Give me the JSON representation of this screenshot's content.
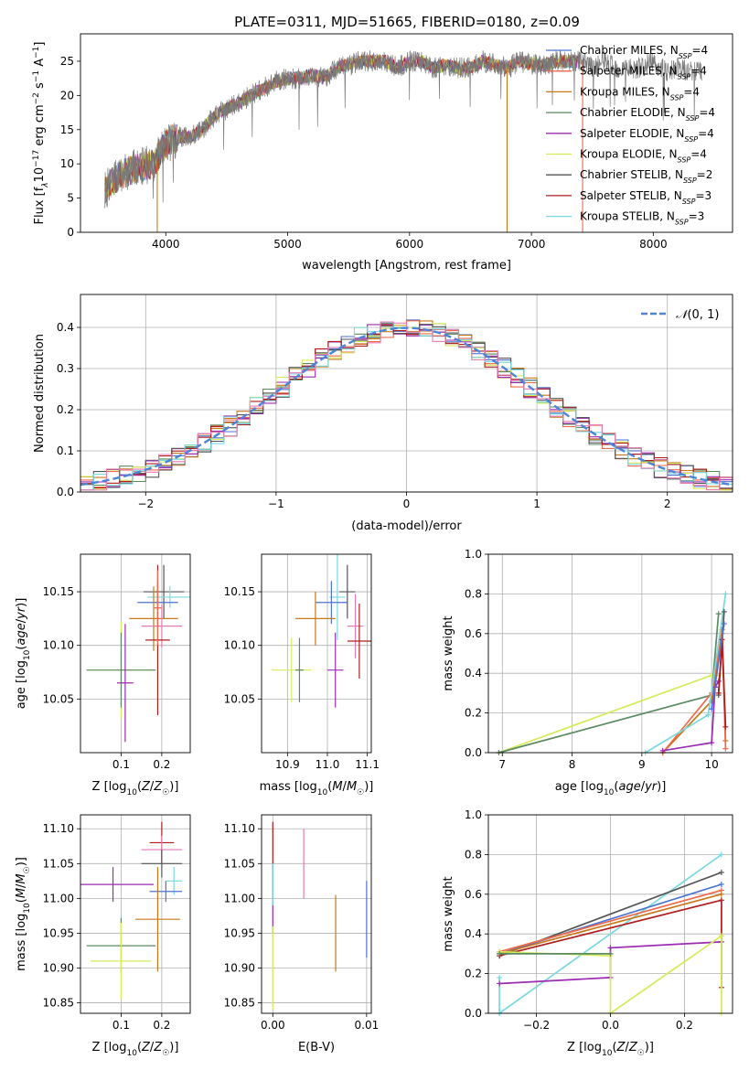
{
  "figure_title": "PLATE=0311, MJD=51665, FIBERID=0180, z=0.09",
  "colors": {
    "chabrier_miles": "#4c72d0",
    "salpeter_miles": "#ef6a4c",
    "kroupa_miles": "#c8781a",
    "chabrier_elodie": "#5a8a60",
    "salpeter_elodie": "#9b2bb0",
    "kroupa_elodie": "#d4ec5a",
    "chabrier_stelib": "#555555",
    "salpeter_stelib": "#b01c1c",
    "kroupa_stelib": "#79d9df",
    "pink": "#e87ab4",
    "normal_curve": "#4c84d8"
  },
  "chart_data": [
    {
      "id": "spectrum",
      "type": "line",
      "xlabel": "wavelength [Angstrom, rest frame]",
      "ylabel": "Flux [f$_\\lambda$10$^{-17}$ erg cm$^{-2}$ s$^{-1}$ A$^{-1}$]",
      "xlim": [
        3300,
        8650
      ],
      "ylim": [
        0,
        29
      ],
      "xticks": [
        4000,
        5000,
        6000,
        7000,
        8000
      ],
      "yticks": [
        0,
        5,
        10,
        15,
        20,
        25
      ],
      "grid": false,
      "legend_position": "top-right",
      "legend": [
        {
          "label": "Chabrier MILES, N_SSP=4",
          "color_key": "chabrier_miles"
        },
        {
          "label": "Salpeter MILES, N_SSP=4",
          "color_key": "salpeter_miles"
        },
        {
          "label": "Kroupa MILES, N_SSP=4",
          "color_key": "kroupa_miles"
        },
        {
          "label": "Chabrier ELODIE, N_SSP=4",
          "color_key": "chabrier_elodie"
        },
        {
          "label": "Salpeter ELODIE, N_SSP=4",
          "color_key": "salpeter_elodie"
        },
        {
          "label": "Kroupa ELODIE, N_SSP=4",
          "color_key": "kroupa_elodie"
        },
        {
          "label": "Chabrier STELIB, N_SSP=2",
          "color_key": "chabrier_stelib"
        },
        {
          "label": "Salpeter STELIB, N_SSP=3",
          "color_key": "salpeter_stelib"
        },
        {
          "label": "Kroupa STELIB, N_SSP=3",
          "color_key": "kroupa_stelib"
        }
      ],
      "continuum": [
        [
          3500,
          6
        ],
        [
          3600,
          8
        ],
        [
          3700,
          9
        ],
        [
          3800,
          9.5
        ],
        [
          3900,
          10
        ],
        [
          4000,
          13
        ],
        [
          4100,
          14
        ],
        [
          4200,
          14
        ],
        [
          4300,
          15
        ],
        [
          4400,
          17
        ],
        [
          4500,
          18
        ],
        [
          4600,
          19
        ],
        [
          4700,
          20
        ],
        [
          4800,
          21
        ],
        [
          4900,
          22
        ],
        [
          5000,
          22.5
        ],
        [
          5100,
          22.5
        ],
        [
          5200,
          23
        ],
        [
          5300,
          22.5
        ],
        [
          5400,
          24
        ],
        [
          5500,
          24.5
        ],
        [
          5600,
          25
        ],
        [
          5700,
          25
        ],
        [
          5800,
          25
        ],
        [
          5900,
          24
        ],
        [
          6000,
          25
        ],
        [
          6100,
          25
        ],
        [
          6200,
          24
        ],
        [
          6300,
          24.5
        ],
        [
          6400,
          24
        ],
        [
          6500,
          24
        ],
        [
          6600,
          25
        ],
        [
          6700,
          24.5
        ],
        [
          6800,
          24
        ],
        [
          6900,
          25
        ],
        [
          7000,
          24.5
        ],
        [
          7100,
          24.5
        ],
        [
          7200,
          25
        ],
        [
          7300,
          25
        ],
        [
          7400,
          25
        ],
        [
          7500,
          24
        ],
        [
          7600,
          25
        ],
        [
          7700,
          24
        ],
        [
          7800,
          24
        ],
        [
          7900,
          24
        ],
        [
          8000,
          25
        ],
        [
          8100,
          23.5
        ],
        [
          8200,
          24
        ],
        [
          8300,
          23.5
        ],
        [
          8400,
          23.5
        ]
      ],
      "model_end_wavelength": 7400,
      "dropouts": [
        {
          "x": 3930,
          "color_key": "kroupa_miles"
        },
        {
          "x": 6800,
          "color_key": "kroupa_miles"
        },
        {
          "x": 7420,
          "color_key": "salpeter_miles"
        }
      ]
    },
    {
      "id": "residual_hist",
      "type": "histogram",
      "xlabel": "(data-model)/error",
      "ylabel": "Normed distribution",
      "xlim": [
        -2.5,
        2.5
      ],
      "ylim": [
        0,
        0.48
      ],
      "xticks": [
        -2,
        -1,
        0,
        1,
        2
      ],
      "yticks": [
        0.0,
        0.1,
        0.2,
        0.3,
        0.4
      ],
      "grid": true,
      "legend_position": "top-right",
      "legend": [
        {
          "label": "N(0,1)",
          "color_key": "normal_curve",
          "style": "dashed"
        }
      ],
      "bin_width": 0.1
    },
    {
      "id": "age_vs_Z",
      "type": "scatter",
      "xlabel": "Z [log10(Z/Z☉)]",
      "ylabel": "age  [log10(age/yr)]",
      "xlim": [
        0.0,
        0.27
      ],
      "ylim": [
        10.0,
        10.185
      ],
      "xticks": [
        0.1,
        0.2
      ],
      "yticks": [
        10.05,
        10.1,
        10.15
      ],
      "grid": true,
      "points": [
        {
          "x": 0.205,
          "y": 10.15,
          "xerr": 0.05,
          "yerr": 0.025,
          "color_key": "chabrier_stelib"
        },
        {
          "x": 0.22,
          "y": 10.145,
          "xerr": 0.055,
          "yerr": 0.01,
          "color_key": "kroupa_stelib"
        },
        {
          "x": 0.19,
          "y": 10.14,
          "xerr": 0.05,
          "yerr": 0.02,
          "color_key": "chabrier_miles"
        },
        {
          "x": 0.18,
          "y": 10.125,
          "xerr": 0.06,
          "yerr": 0.03,
          "color_key": "kroupa_miles"
        },
        {
          "x": 0.2,
          "y": 10.118,
          "xerr": 0.05,
          "yerr": 0.02,
          "color_key": "pink"
        },
        {
          "x": 0.19,
          "y": 10.105,
          "xerr": 0.03,
          "yerr": 0.07,
          "color_key": "salpeter_stelib"
        },
        {
          "x": 0.1,
          "y": 10.077,
          "xerr": 0.085,
          "yerr": 0.045,
          "color_key": "kroupa_elodie"
        },
        {
          "x": 0.1,
          "y": 10.077,
          "xerr": 0.085,
          "yerr": 0.035,
          "color_key": "chabrier_elodie"
        },
        {
          "x": 0.11,
          "y": 10.065,
          "xerr": 0.02,
          "yerr": 0.055,
          "color_key": "salpeter_elodie"
        },
        {
          "x": 0.19,
          "y": 10.135,
          "xerr": 0.01,
          "yerr": 0.035,
          "color_key": "salpeter_miles"
        }
      ]
    },
    {
      "id": "age_vs_mass",
      "type": "scatter",
      "xlabel": "mass [log10(M/M☉)]",
      "ylabel": "",
      "xlim": [
        10.835,
        11.11
      ],
      "ylim": [
        10.0,
        10.185
      ],
      "xticks": [
        10.9,
        11.0,
        11.1
      ],
      "yticks": [
        10.05,
        10.1,
        10.15
      ],
      "grid": true,
      "points": [
        {
          "x": 11.05,
          "y": 10.15,
          "xerr": 0.02,
          "yerr": 0.025,
          "color_key": "chabrier_stelib"
        },
        {
          "x": 11.025,
          "y": 10.145,
          "xerr": 0.02,
          "yerr": 0.04,
          "color_key": "kroupa_stelib"
        },
        {
          "x": 11.01,
          "y": 10.14,
          "xerr": 0.04,
          "yerr": 0.02,
          "color_key": "chabrier_miles"
        },
        {
          "x": 10.97,
          "y": 10.125,
          "xerr": 0.05,
          "yerr": 0.025,
          "color_key": "kroupa_miles"
        },
        {
          "x": 11.07,
          "y": 10.118,
          "xerr": 0.02,
          "yerr": 0.03,
          "color_key": "pink"
        },
        {
          "x": 11.08,
          "y": 10.104,
          "xerr": 0.03,
          "yerr": 0.035,
          "color_key": "salpeter_stelib"
        },
        {
          "x": 10.91,
          "y": 10.077,
          "xerr": 0.05,
          "yerr": 0.03,
          "color_key": "kroupa_elodie"
        },
        {
          "x": 10.93,
          "y": 10.077,
          "xerr": 0.01,
          "yerr": 0.03,
          "color_key": "chabrier_elodie"
        },
        {
          "x": 11.02,
          "y": 10.077,
          "xerr": 0.02,
          "yerr": 0.035,
          "color_key": "salpeter_elodie"
        }
      ]
    },
    {
      "id": "weight_vs_age",
      "type": "line",
      "xlabel": "age  [log10(age/yr)]",
      "ylabel": "mass weight",
      "xlim": [
        6.8,
        10.3
      ],
      "ylim": [
        0,
        1.0
      ],
      "xticks": [
        7,
        8,
        9,
        10
      ],
      "yticks": [
        0.0,
        0.2,
        0.4,
        0.6,
        0.8,
        1.0
      ],
      "grid": true,
      "series": [
        {
          "color_key": "kroupa_elodie",
          "points": [
            [
              6.95,
              0.0
            ],
            [
              10.0,
              0.39
            ],
            [
              10.1,
              0.39
            ]
          ]
        },
        {
          "color_key": "chabrier_elodie",
          "points": [
            [
              6.95,
              0.0
            ],
            [
              10.0,
              0.29
            ],
            [
              10.1,
              0.7
            ]
          ]
        },
        {
          "color_key": "kroupa_miles",
          "points": [
            [
              9.3,
              0.0
            ],
            [
              10.0,
              0.26
            ],
            [
              10.15,
              0.62
            ],
            [
              10.2,
              0.06
            ]
          ]
        },
        {
          "color_key": "salpeter_miles",
          "points": [
            [
              9.3,
              0.0
            ],
            [
              10.0,
              0.3
            ],
            [
              10.15,
              0.6
            ],
            [
              10.2,
              0.02
            ]
          ]
        },
        {
          "color_key": "salpeter_elodie",
          "points": [
            [
              9.3,
              0.01
            ],
            [
              10.0,
              0.05
            ],
            [
              10.05,
              0.33
            ],
            [
              10.1,
              0.36
            ]
          ]
        },
        {
          "color_key": "kroupa_stelib",
          "points": [
            [
              9.05,
              0.0
            ],
            [
              9.95,
              0.19
            ],
            [
              10.2,
              0.8
            ]
          ]
        },
        {
          "color_key": "chabrier_stelib",
          "points": [
            [
              10.1,
              0.29
            ],
            [
              10.18,
              0.71
            ]
          ]
        },
        {
          "color_key": "salpeter_stelib",
          "points": [
            [
              10.1,
              0.3
            ],
            [
              10.15,
              0.57
            ],
            [
              10.2,
              0.13
            ]
          ]
        },
        {
          "color_key": "chabrier_miles",
          "points": [
            [
              10.0,
              0.22
            ],
            [
              10.18,
              0.65
            ]
          ]
        }
      ]
    },
    {
      "id": "mass_vs_Z",
      "type": "scatter",
      "xlabel": "Z [log10(Z/Z☉)]",
      "ylabel": "mass [log10(M/M☉)]",
      "xlim": [
        0.0,
        0.27
      ],
      "ylim": [
        10.835,
        11.12
      ],
      "xticks": [
        0.1,
        0.2
      ],
      "yticks": [
        10.85,
        10.9,
        10.95,
        11.0,
        11.05,
        11.1
      ],
      "grid": true,
      "points": [
        {
          "x": 0.2,
          "y": 11.08,
          "xerr": 0.03,
          "yerr": 0.03,
          "color_key": "salpeter_stelib"
        },
        {
          "x": 0.2,
          "y": 11.07,
          "xerr": 0.05,
          "yerr": 0.02,
          "color_key": "pink"
        },
        {
          "x": 0.2,
          "y": 11.05,
          "xerr": 0.05,
          "yerr": 0.02,
          "color_key": "chabrier_stelib"
        },
        {
          "x": 0.23,
          "y": 11.025,
          "xerr": 0.02,
          "yerr": 0.02,
          "color_key": "kroupa_stelib"
        },
        {
          "x": 0.08,
          "y": 11.02,
          "xerr": 0.1,
          "yerr": 0.025,
          "color_key": "salpeter_elodie"
        },
        {
          "x": 0.21,
          "y": 11.01,
          "xerr": 0.04,
          "yerr": 0.015,
          "color_key": "chabrier_miles"
        },
        {
          "x": 0.19,
          "y": 10.97,
          "xerr": 0.055,
          "yerr": 0.075,
          "color_key": "kroupa_miles"
        },
        {
          "x": 0.1,
          "y": 10.932,
          "xerr": 0.085,
          "yerr": 0.04,
          "color_key": "chabrier_elodie"
        },
        {
          "x": 0.1,
          "y": 10.91,
          "xerr": 0.075,
          "yerr": 0.055,
          "color_key": "kroupa_elodie"
        }
      ]
    },
    {
      "id": "mass_vs_ebv",
      "type": "scatter",
      "xlabel": "E(B-V)",
      "ylabel": "",
      "xlim": [
        -0.0012,
        0.0105
      ],
      "ylim": [
        10.835,
        11.12
      ],
      "xticks": [
        0.0,
        0.01
      ],
      "yticks": [
        10.85,
        10.9,
        10.95,
        11.0,
        11.05,
        11.1
      ],
      "grid": true,
      "points": [
        {
          "x": 0.0,
          "y": 11.08,
          "yerr": 0.03,
          "color_key": "salpeter_stelib"
        },
        {
          "x": 0.0033,
          "y": 11.05,
          "yerr": 0.05,
          "color_key": "pink"
        },
        {
          "x": 0.0,
          "y": 11.0,
          "yerr": 0.05,
          "color_key": "salpeter_elodie"
        },
        {
          "x": 0.0,
          "y": 11.02,
          "yerr": 0.03,
          "color_key": "kroupa_stelib"
        },
        {
          "x": 0.0067,
          "y": 10.95,
          "yerr": 0.055,
          "color_key": "kroupa_miles"
        },
        {
          "x": 0.01,
          "y": 10.97,
          "yerr": 0.055,
          "color_key": "chabrier_miles"
        },
        {
          "x": 0.0,
          "y": 10.9,
          "yerr": 0.06,
          "color_key": "kroupa_elodie"
        }
      ]
    },
    {
      "id": "weight_vs_Z",
      "type": "line",
      "xlabel": "Z [log10(Z/Z☉)]",
      "ylabel": "mass weight",
      "xlim": [
        -0.33,
        0.33
      ],
      "ylim": [
        0,
        1.0
      ],
      "xticks": [
        -0.2,
        0.0,
        0.2
      ],
      "yticks": [
        0.0,
        0.2,
        0.4,
        0.6,
        0.8,
        1.0
      ],
      "grid": true,
      "series": [
        {
          "color_key": "kroupa_stelib",
          "points": [
            [
              -0.3,
              0.18
            ],
            [
              -0.3,
              0.0
            ],
            [
              0.3,
              0.8
            ]
          ]
        },
        {
          "color_key": "chabrier_stelib",
          "points": [
            [
              -0.3,
              0.29
            ],
            [
              0.3,
              0.71
            ]
          ]
        },
        {
          "color_key": "chabrier_miles",
          "points": [
            [
              -0.3,
              0.3
            ],
            [
              0.3,
              0.65
            ]
          ]
        },
        {
          "color_key": "salpeter_miles",
          "points": [
            [
              -0.3,
              0.31
            ],
            [
              0.3,
              0.62
            ]
          ]
        },
        {
          "color_key": "kroupa_miles",
          "points": [
            [
              -0.3,
              0.3
            ],
            [
              0.3,
              0.6
            ]
          ]
        },
        {
          "color_key": "salpeter_stelib",
          "points": [
            [
              -0.3,
              0.29
            ],
            [
              0.3,
              0.57
            ],
            [
              0.3,
              0.13
            ]
          ]
        },
        {
          "color_key": "salpeter_elodie",
          "points": [
            [
              -0.3,
              0.15
            ],
            [
              0.0,
              0.18
            ],
            [
              0.0,
              0.33
            ],
            [
              0.3,
              0.36
            ]
          ]
        },
        {
          "color_key": "kroupa_elodie",
          "points": [
            [
              -0.3,
              0.31
            ],
            [
              0.0,
              0.29
            ],
            [
              0.0,
              0.0
            ],
            [
              0.3,
              0.39
            ],
            [
              0.3,
              0.0
            ]
          ]
        },
        {
          "color_key": "chabrier_elodie",
          "points": [
            [
              -0.3,
              0.3
            ],
            [
              0.0,
              0.3
            ]
          ]
        }
      ]
    }
  ]
}
